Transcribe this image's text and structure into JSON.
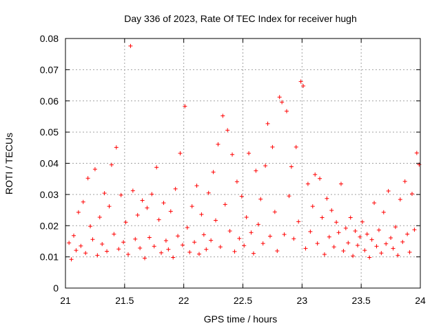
{
  "chart_data": {
    "type": "scatter",
    "title": "Day 336 of 2023, Rate Of TEC Index for receiver hugh",
    "xlabel": "GPS time / hours",
    "ylabel": "ROTI / TECUs",
    "xlim": [
      21,
      24
    ],
    "ylim": [
      0,
      0.08
    ],
    "x_ticks": [
      "21",
      "21.5",
      "22",
      "22.5",
      "23",
      "23.5",
      "24"
    ],
    "y_ticks": [
      "0",
      "0.01",
      "0.02",
      "0.03",
      "0.04",
      "0.05",
      "0.06",
      "0.07",
      "0.08"
    ],
    "grid": true,
    "marker": "plus",
    "color": "#ff0000",
    "series": [
      {
        "x": [
          21.03,
          21.05,
          21.07,
          21.09,
          21.11,
          21.13,
          21.15,
          21.17,
          21.19,
          21.21,
          21.23,
          21.25,
          21.27,
          21.29,
          21.31,
          21.33,
          21.35,
          21.37,
          21.39,
          21.41,
          21.43,
          21.45,
          21.47,
          21.49,
          21.51,
          21.53,
          21.55,
          21.57,
          21.59,
          21.61,
          21.63,
          21.65,
          21.67,
          21.69,
          21.71,
          21.73,
          21.75,
          21.77,
          21.79,
          21.81,
          21.83,
          21.85,
          21.87,
          21.89,
          21.91,
          21.93,
          21.95,
          21.97,
          21.99,
          22.01,
          22.03,
          22.05,
          22.07,
          22.09,
          22.11,
          22.13,
          22.15,
          22.17,
          22.19,
          22.21,
          22.23,
          22.25,
          22.27,
          22.29,
          22.31,
          22.33,
          22.35,
          22.37,
          22.39,
          22.41,
          22.43,
          22.45,
          22.47,
          22.49,
          22.51,
          22.53,
          22.55,
          22.57,
          22.59,
          22.61,
          22.63,
          22.65,
          22.67,
          22.69,
          22.71,
          22.73,
          22.75,
          22.77,
          22.79,
          22.81,
          22.83,
          22.85,
          22.87,
          22.89,
          22.91,
          22.93,
          22.95,
          22.97,
          22.99,
          23.01,
          23.03,
          23.05,
          23.07,
          23.09,
          23.11,
          23.13,
          23.15,
          23.17,
          23.19,
          23.21,
          23.23,
          23.25,
          23.27,
          23.29,
          23.31,
          23.33,
          23.35,
          23.37,
          23.39,
          23.41,
          23.43,
          23.45,
          23.47,
          23.49,
          23.51,
          23.53,
          23.55,
          23.57,
          23.59,
          23.61,
          23.63,
          23.65,
          23.67,
          23.69,
          23.71,
          23.73,
          23.75,
          23.77,
          23.79,
          23.81,
          23.83,
          23.85,
          23.87,
          23.89,
          23.91,
          23.93,
          23.95,
          23.97,
          23.99
        ],
        "y": [
          0.0145,
          0.0092,
          0.0168,
          0.0121,
          0.0243,
          0.0135,
          0.0276,
          0.0112,
          0.0352,
          0.0198,
          0.0156,
          0.0381,
          0.0105,
          0.0227,
          0.0141,
          0.0304,
          0.0118,
          0.0262,
          0.0395,
          0.0173,
          0.0451,
          0.0125,
          0.0298,
          0.0147,
          0.0211,
          0.0108,
          0.0776,
          0.0312,
          0.0157,
          0.0234,
          0.0128,
          0.0281,
          0.0096,
          0.0257,
          0.0162,
          0.0301,
          0.0134,
          0.0387,
          0.0219,
          0.0113,
          0.0273,
          0.0152,
          0.0124,
          0.0246,
          0.0098,
          0.0318,
          0.0167,
          0.0432,
          0.0138,
          0.0583,
          0.0194,
          0.0115,
          0.0262,
          0.0147,
          0.0328,
          0.0109,
          0.0236,
          0.0171,
          0.0124,
          0.0305,
          0.0153,
          0.0372,
          0.0217,
          0.0461,
          0.0132,
          0.0552,
          0.0268,
          0.0506,
          0.0183,
          0.0428,
          0.0117,
          0.0341,
          0.0159,
          0.0294,
          0.0136,
          0.0227,
          0.0432,
          0.0178,
          0.0111,
          0.0376,
          0.0204,
          0.0285,
          0.0143,
          0.0392,
          0.0527,
          0.0166,
          0.0452,
          0.0244,
          0.0119,
          0.0612,
          0.0596,
          0.0172,
          0.0567,
          0.0295,
          0.0389,
          0.0158,
          0.0452,
          0.0213,
          0.0662,
          0.0648,
          0.0127,
          0.0334,
          0.0181,
          0.0262,
          0.0364,
          0.0143,
          0.0351,
          0.0226,
          0.0108,
          0.0287,
          0.0164,
          0.0249,
          0.0132,
          0.0211,
          0.0178,
          0.0334,
          0.0119,
          0.0192,
          0.0145,
          0.0226,
          0.0103,
          0.0183,
          0.0137,
          0.0164,
          0.0212,
          0.0121,
          0.0173,
          0.0098,
          0.0155,
          0.0273,
          0.0134,
          0.0186,
          0.0112,
          0.0243,
          0.0142,
          0.0311,
          0.0161,
          0.0127,
          0.0196,
          0.0105,
          0.0284,
          0.0148,
          0.0342,
          0.0173,
          0.0115,
          0.0302,
          0.0187,
          0.0433,
          0.0396
        ]
      }
    ]
  }
}
